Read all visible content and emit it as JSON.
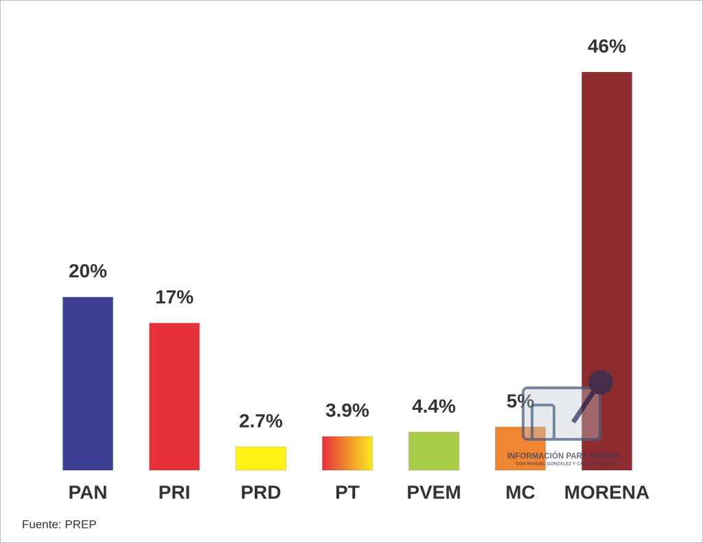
{
  "chart_data": {
    "type": "bar",
    "categories": [
      "PAN",
      "PRI",
      "PRD",
      "PT",
      "PVEM",
      "MC",
      "MORENA"
    ],
    "values": [
      20,
      17,
      2.7,
      3.9,
      4.4,
      5,
      46
    ],
    "value_labels": [
      "20%",
      "17%",
      "2.7%",
      "3.9%",
      "4.4%",
      "5%",
      "46%"
    ],
    "colors": [
      "#3d3f93",
      "#e8323a",
      "#fff215",
      [
        "#e8303a",
        "#f8ea1e"
      ],
      "#a6cd45",
      "#f08532",
      "#8e2c2f"
    ],
    "source": "Fuente: PREP",
    "watermark": {
      "title": "INFORMACIÓN PARA SERVIR...",
      "subtitle": "CON MANUEL GONZÁLEZ Y CANDY PANIAGUA"
    }
  }
}
